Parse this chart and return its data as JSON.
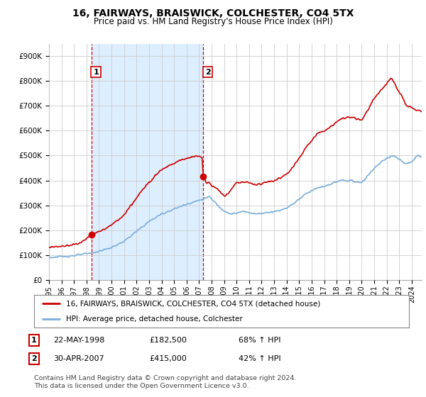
{
  "title": "16, FAIRWAYS, BRAISWICK, COLCHESTER, CO4 5TX",
  "subtitle": "Price paid vs. HM Land Registry's House Price Index (HPI)",
  "line1_color": "#cc0000",
  "line2_color": "#7aaddc",
  "shade_color": "#ddeeff",
  "marker_color": "#cc0000",
  "sale1_x": 1998.38,
  "sale1_y": 182500,
  "sale2_x": 2007.33,
  "sale2_y": 415000,
  "vline_color": "#cc0000",
  "legend_line1": "16, FAIRWAYS, BRAISWICK, COLCHESTER, CO4 5TX (detached house)",
  "legend_line2": "HPI: Average price, detached house, Colchester",
  "table_row1": [
    "1",
    "22-MAY-1998",
    "£182,500",
    "68% ↑ HPI"
  ],
  "table_row2": [
    "2",
    "30-APR-2007",
    "£415,000",
    "42% ↑ HPI"
  ],
  "footnote": "Contains HM Land Registry data © Crown copyright and database right 2024.\nThis data is licensed under the Open Government Licence v3.0.",
  "background_color": "#ffffff",
  "grid_color": "#cccccc",
  "ylim": [
    0,
    950000
  ],
  "yticks": [
    0,
    100000,
    200000,
    300000,
    400000,
    500000,
    600000,
    700000,
    800000,
    900000
  ],
  "ytick_labels": [
    "£0",
    "£100K",
    "£200K",
    "£300K",
    "£400K",
    "£500K",
    "£600K",
    "£700K",
    "£800K",
    "£900K"
  ],
  "xlim": [
    1995.0,
    2024.8
  ],
  "xticks": [
    1995,
    1996,
    1997,
    1998,
    1999,
    2000,
    2001,
    2002,
    2003,
    2004,
    2005,
    2006,
    2007,
    2008,
    2009,
    2010,
    2011,
    2012,
    2013,
    2014,
    2015,
    2016,
    2017,
    2018,
    2019,
    2020,
    2021,
    2022,
    2023,
    2024
  ]
}
